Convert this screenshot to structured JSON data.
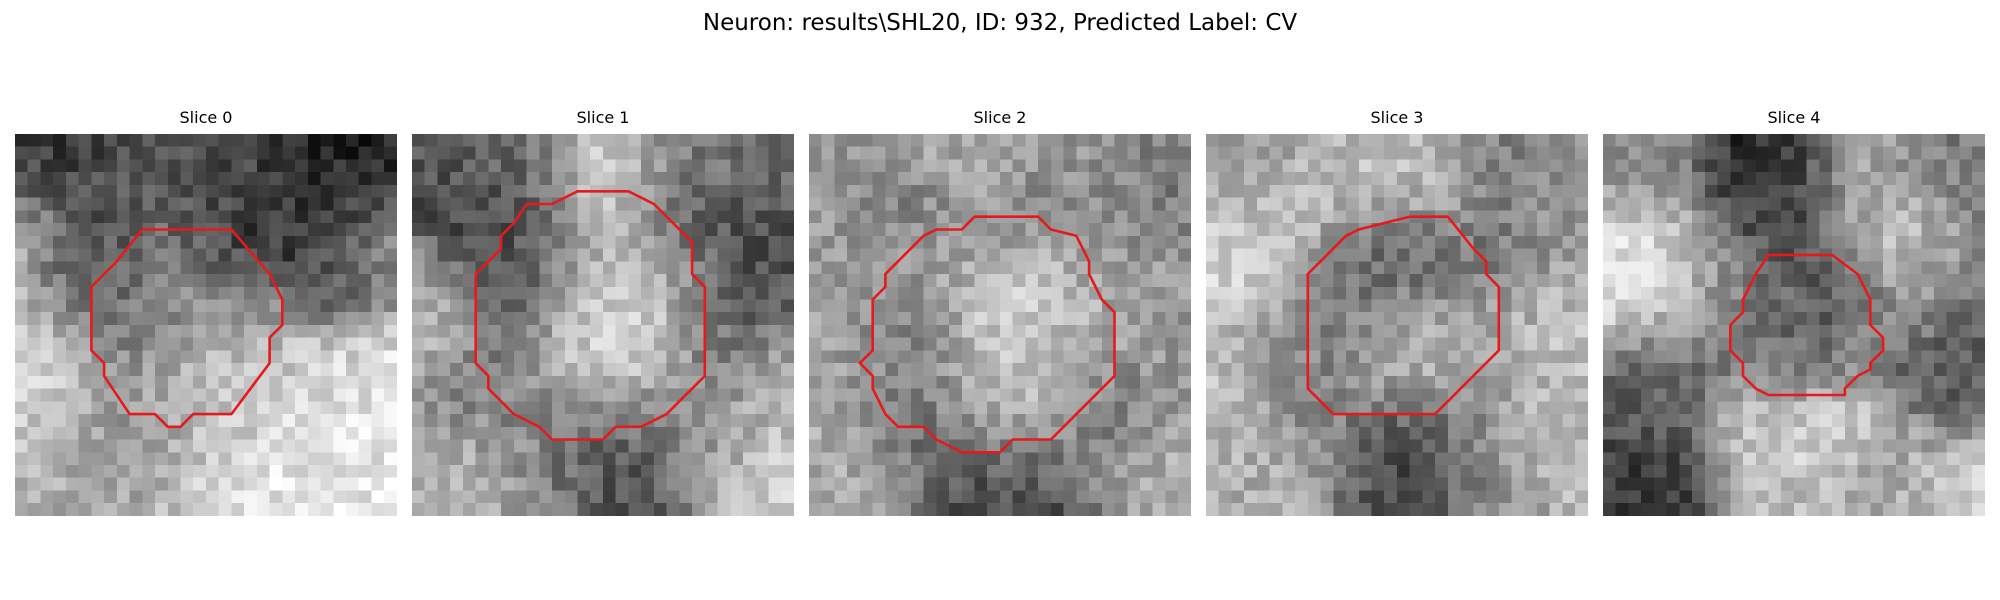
{
  "figure": {
    "title": "Neuron: results\\SHL20, ID: 932, Predicted Label: CV",
    "colormap": "gray",
    "contour_color": "#e41a1c",
    "panels": [
      {
        "title": "Slice 0",
        "seed": 11,
        "blobs": [
          [
            3,
            1,
            3,
            35
          ],
          [
            7,
            3,
            4,
            90
          ],
          [
            12,
            1,
            3,
            80
          ],
          [
            15,
            3,
            3,
            75
          ],
          [
            18,
            2,
            3,
            90
          ],
          [
            22,
            1,
            3,
            30
          ],
          [
            26,
            4,
            3,
            15
          ],
          [
            20,
            4,
            5,
            50
          ],
          [
            1,
            8,
            3,
            195
          ],
          [
            6,
            7,
            3,
            55
          ],
          [
            5,
            9,
            2,
            40
          ],
          [
            10,
            10,
            4,
            150
          ],
          [
            12,
            12,
            3,
            170
          ],
          [
            8,
            13,
            3,
            70
          ],
          [
            16,
            9,
            3,
            45
          ],
          [
            18,
            12,
            2,
            170
          ],
          [
            22,
            7,
            3,
            35
          ],
          [
            24,
            10,
            3,
            55
          ],
          [
            27,
            8,
            3,
            200
          ],
          [
            2,
            20,
            4,
            230
          ],
          [
            10,
            22,
            5,
            110
          ],
          [
            8,
            24,
            3,
            125
          ],
          [
            14,
            20,
            4,
            225
          ],
          [
            18,
            17,
            3,
            175
          ],
          [
            24,
            19,
            4,
            225
          ],
          [
            27,
            25,
            4,
            230
          ],
          [
            5,
            27,
            4,
            180
          ],
          [
            14,
            27,
            4,
            240
          ],
          [
            22,
            28,
            4,
            235
          ]
        ],
        "contour": [
          [
            10,
            7.5
          ],
          [
            17,
            7.5
          ],
          [
            20,
            11
          ],
          [
            21,
            13
          ],
          [
            21,
            15
          ],
          [
            20,
            16
          ],
          [
            20,
            18
          ],
          [
            17,
            22
          ],
          [
            14,
            22
          ],
          [
            13,
            23
          ],
          [
            12,
            23
          ],
          [
            11,
            22
          ],
          [
            9,
            22
          ],
          [
            7,
            19
          ],
          [
            7,
            18
          ],
          [
            6,
            17
          ],
          [
            6,
            12
          ],
          [
            7,
            11
          ],
          [
            8,
            10
          ]
        ]
      },
      {
        "title": "Slice 1",
        "seed": 23,
        "blobs": [
          [
            3,
            1,
            3,
            90
          ],
          [
            8,
            2,
            3,
            110
          ],
          [
            15,
            2,
            3,
            215
          ],
          [
            20,
            3,
            3,
            125
          ],
          [
            25,
            1,
            3,
            110
          ],
          [
            5,
            7,
            3,
            50
          ],
          [
            7,
            12,
            3,
            55
          ],
          [
            6,
            20,
            3,
            90
          ],
          [
            10,
            10,
            3,
            90
          ],
          [
            15,
            12,
            4,
            215
          ],
          [
            14,
            17,
            5,
            225
          ],
          [
            19,
            11,
            3,
            205
          ],
          [
            22,
            8,
            3,
            50
          ],
          [
            24,
            14,
            3,
            75
          ],
          [
            23,
            20,
            3,
            130
          ],
          [
            13,
            23,
            3,
            95
          ],
          [
            16,
            26,
            4,
            45
          ],
          [
            5,
            24,
            3,
            170
          ],
          [
            3,
            27,
            3,
            190
          ],
          [
            10,
            28,
            3,
            145
          ],
          [
            22,
            26,
            3,
            160
          ],
          [
            27,
            27,
            3,
            215
          ],
          [
            27,
            20,
            3,
            190
          ],
          [
            2,
            13,
            3,
            200
          ]
        ],
        "contour": [
          [
            9,
            5.5
          ],
          [
            11,
            5.5
          ],
          [
            13,
            4.5
          ],
          [
            17,
            4.5
          ],
          [
            19,
            5.5
          ],
          [
            20,
            6.5
          ],
          [
            22,
            8.5
          ],
          [
            22,
            11
          ],
          [
            23,
            12
          ],
          [
            23,
            19
          ],
          [
            22,
            20
          ],
          [
            20,
            22
          ],
          [
            18,
            23
          ],
          [
            16,
            23
          ],
          [
            15,
            24
          ],
          [
            11,
            24
          ],
          [
            10,
            23
          ],
          [
            8,
            22
          ],
          [
            7,
            21
          ],
          [
            6,
            20
          ],
          [
            6,
            19
          ],
          [
            5,
            18
          ],
          [
            5,
            11
          ],
          [
            6,
            10
          ],
          [
            7,
            9
          ],
          [
            7,
            8
          ],
          [
            8,
            7
          ]
        ]
      },
      {
        "title": "Slice 2",
        "seed": 37,
        "blobs": [
          [
            4,
            3,
            3,
            155
          ],
          [
            12,
            2,
            3,
            175
          ],
          [
            20,
            2,
            3,
            150
          ],
          [
            26,
            4,
            3,
            120
          ],
          [
            6,
            9,
            3,
            150
          ],
          [
            14,
            13,
            4,
            215
          ],
          [
            14,
            18,
            4,
            205
          ],
          [
            8,
            15,
            3,
            105
          ],
          [
            8,
            19,
            3,
            120
          ],
          [
            20,
            15,
            3,
            175
          ],
          [
            22,
            8,
            3,
            160
          ],
          [
            22,
            22,
            3,
            110
          ],
          [
            16,
            23,
            3,
            185
          ],
          [
            10,
            24,
            3,
            90
          ],
          [
            14,
            27,
            3,
            55
          ],
          [
            17,
            28,
            3,
            65
          ],
          [
            4,
            27,
            3,
            175
          ],
          [
            26,
            26,
            3,
            175
          ],
          [
            2,
            17,
            3,
            165
          ],
          [
            27,
            13,
            3,
            155
          ],
          [
            7,
            5,
            2,
            110
          ],
          [
            18,
            5,
            2,
            130
          ],
          [
            12,
            7,
            3,
            130
          ]
        ],
        "contour": [
          [
            10,
            7.5
          ],
          [
            12,
            7.5
          ],
          [
            13,
            6.5
          ],
          [
            18,
            6.5
          ],
          [
            19,
            7.5
          ],
          [
            21,
            8
          ],
          [
            22,
            10
          ],
          [
            22,
            11
          ],
          [
            23,
            13
          ],
          [
            24,
            14
          ],
          [
            24,
            19
          ],
          [
            23,
            20
          ],
          [
            22,
            21
          ],
          [
            21,
            22
          ],
          [
            20,
            23
          ],
          [
            19,
            24
          ],
          [
            16,
            24
          ],
          [
            15,
            25
          ],
          [
            12,
            25
          ],
          [
            10,
            24
          ],
          [
            9,
            23
          ],
          [
            7,
            23
          ],
          [
            6,
            22
          ],
          [
            5,
            20
          ],
          [
            5,
            19
          ],
          [
            4,
            18
          ],
          [
            5,
            17
          ],
          [
            5,
            13
          ],
          [
            6,
            12
          ],
          [
            6,
            11
          ],
          [
            7,
            10
          ],
          [
            9,
            8
          ]
        ]
      },
      {
        "title": "Slice 3",
        "seed": 53,
        "blobs": [
          [
            3,
            2,
            3,
            160
          ],
          [
            11,
            1,
            3,
            185
          ],
          [
            17,
            2,
            3,
            200
          ],
          [
            22,
            2,
            3,
            110
          ],
          [
            26,
            3,
            3,
            150
          ],
          [
            4,
            10,
            4,
            215
          ],
          [
            10,
            13,
            3,
            75
          ],
          [
            14,
            10,
            3,
            60
          ],
          [
            14,
            16,
            5,
            220
          ],
          [
            21,
            11,
            3,
            95
          ],
          [
            24,
            14,
            3,
            195
          ],
          [
            20,
            21,
            3,
            120
          ],
          [
            14,
            23,
            3,
            85
          ],
          [
            8,
            20,
            3,
            95
          ],
          [
            5,
            25,
            3,
            175
          ],
          [
            16,
            27,
            3,
            60
          ],
          [
            15,
            24,
            2,
            40
          ],
          [
            22,
            27,
            3,
            140
          ],
          [
            27,
            25,
            3,
            195
          ],
          [
            2,
            19,
            3,
            200
          ],
          [
            26,
            21,
            3,
            185
          ],
          [
            6,
            17,
            3,
            120
          ]
        ],
        "contour": [
          [
            12,
            7.5
          ],
          [
            16,
            6.5
          ],
          [
            19,
            6.5
          ],
          [
            21,
            9
          ],
          [
            22,
            10
          ],
          [
            22,
            11
          ],
          [
            23,
            12
          ],
          [
            23,
            17
          ],
          [
            22,
            18
          ],
          [
            21,
            19
          ],
          [
            20,
            20
          ],
          [
            19,
            21
          ],
          [
            18,
            22
          ],
          [
            10,
            22
          ],
          [
            9,
            21
          ],
          [
            8,
            20
          ],
          [
            8,
            11
          ],
          [
            9,
            10
          ],
          [
            10,
            9
          ],
          [
            11,
            8
          ]
        ]
      },
      {
        "title": "Slice 4",
        "seed": 71,
        "blobs": [
          [
            3,
            2,
            3,
            140
          ],
          [
            12,
            2,
            3,
            35
          ],
          [
            12,
            4,
            3,
            50
          ],
          [
            20,
            2,
            3,
            165
          ],
          [
            26,
            2,
            3,
            120
          ],
          [
            4,
            10,
            4,
            230
          ],
          [
            9,
            12,
            3,
            125
          ],
          [
            15,
            8,
            3,
            85
          ],
          [
            16,
            13,
            3,
            90
          ],
          [
            19,
            12,
            2,
            60
          ],
          [
            14,
            16,
            3,
            110
          ],
          [
            20,
            15,
            2,
            140
          ],
          [
            22,
            8,
            3,
            220
          ],
          [
            24,
            11,
            3,
            170
          ],
          [
            27,
            13,
            3,
            100
          ],
          [
            26,
            19,
            3,
            80
          ],
          [
            5,
            19,
            3,
            90
          ],
          [
            3,
            24,
            3,
            80
          ],
          [
            11,
            23,
            3,
            205
          ],
          [
            18,
            23,
            3,
            215
          ],
          [
            23,
            25,
            3,
            160
          ],
          [
            4,
            28,
            3,
            40
          ],
          [
            13,
            28,
            3,
            190
          ],
          [
            21,
            29,
            3,
            160
          ],
          [
            27,
            27,
            3,
            215
          ]
        ],
        "contour": [
          [
            13,
            9.5
          ],
          [
            15,
            9.5
          ],
          [
            18,
            9.5
          ],
          [
            20,
            11
          ],
          [
            21,
            13
          ],
          [
            21,
            15
          ],
          [
            22,
            16
          ],
          [
            22,
            17
          ],
          [
            21,
            18
          ],
          [
            21,
            18.5
          ],
          [
            20,
            19
          ],
          [
            19,
            20
          ],
          [
            19,
            20.5
          ],
          [
            18,
            20.5
          ],
          [
            16,
            20.5
          ],
          [
            13,
            20.5
          ],
          [
            12,
            20
          ],
          [
            11,
            19
          ],
          [
            11,
            18
          ],
          [
            10,
            17
          ],
          [
            10,
            15
          ],
          [
            11,
            14
          ],
          [
            11,
            13
          ],
          [
            12,
            11
          ]
        ]
      }
    ]
  }
}
